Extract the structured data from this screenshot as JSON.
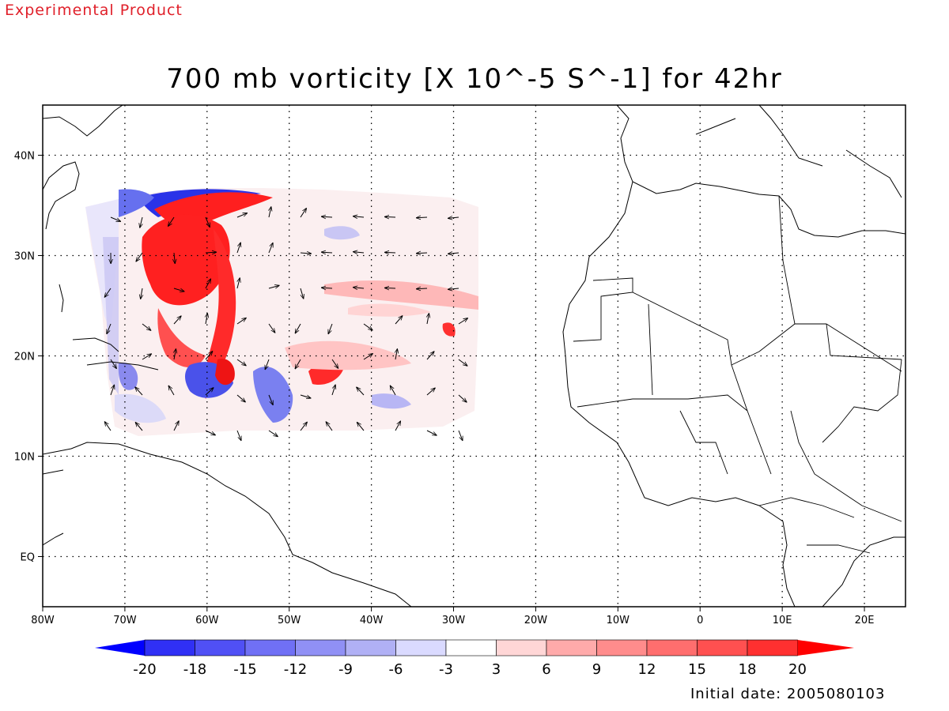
{
  "header": {
    "product_label": "Experimental Product",
    "title": "700 mb vorticity [X 10^-5 S^-1] for 42hr"
  },
  "map": {
    "lon_range": [
      -80,
      25
    ],
    "lat_range": [
      -5,
      45
    ],
    "x_ticks": [
      "80W",
      "70W",
      "60W",
      "50W",
      "40W",
      "30W",
      "20W",
      "10W",
      "0",
      "10E",
      "20E"
    ],
    "y_ticks": [
      "EQ",
      "10N",
      "20N",
      "30N",
      "40N"
    ],
    "grid": "dotted"
  },
  "colorbar": {
    "labels": [
      "-20",
      "-18",
      "-15",
      "-12",
      "-9",
      "-6",
      "-3",
      "3",
      "6",
      "9",
      "12",
      "15",
      "18",
      "20"
    ],
    "colors": [
      "#0000ff",
      "#3030f5",
      "#5050f5",
      "#7070f5",
      "#9090f5",
      "#b0b0f5",
      "#dadaff",
      "#ffffff",
      "#ffd6d6",
      "#ffaaaa",
      "#ff8c8c",
      "#ff6e6e",
      "#ff5050",
      "#ff3030",
      "#ff0000"
    ]
  },
  "footer": {
    "initial_date": "Initial date: 2005080103"
  }
}
